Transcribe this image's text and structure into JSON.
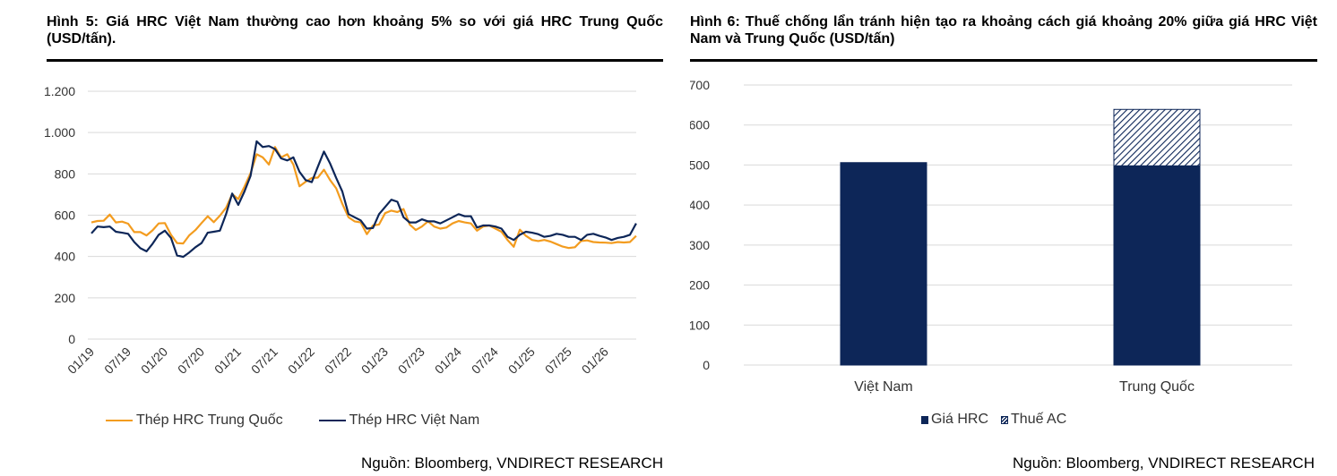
{
  "left": {
    "title": "Hình 5: Giá HRC Việt Nam thường cao hơn khoảng 5% so với giá HRC Trung Quốc (USD/tấn).",
    "source": "Nguồn: Bloomberg, VNDIRECT RESEARCH",
    "legend": [
      {
        "label": "Thép HRC Trung Quốc",
        "color": "#f39c1f"
      },
      {
        "label": "Thép HRC Việt Nam",
        "color": "#0d2658"
      }
    ]
  },
  "right": {
    "title": "Hình 6:  Thuế chống lẩn tránh hiện tạo ra khoảng cách giá khoảng 20% giữa giá HRC Việt Nam và Trung Quốc (USD/tấn)",
    "source": "Nguồn: Bloomberg, VNDIRECT RESEARCH",
    "legend": [
      {
        "label": "Giá HRC",
        "icon": "solid-square-icon",
        "color": "#0d2658"
      },
      {
        "label": "Thuế AC",
        "icon": "hatched-square-icon",
        "color": "#0d2658"
      }
    ]
  },
  "chart_data": [
    {
      "type": "line",
      "title": "",
      "ylim": [
        0,
        1200
      ],
      "yticks": [
        0,
        200,
        400,
        600,
        800,
        1000,
        1200
      ],
      "ytick_labels": [
        "0",
        "200",
        "400",
        "600",
        "800",
        "1.000",
        "1.200"
      ],
      "xtick_labels": [
        "01/19",
        "07/19",
        "01/20",
        "07/20",
        "01/21",
        "07/21",
        "01/22",
        "07/22",
        "01/23",
        "07/23",
        "01/24",
        "07/24",
        "01/25",
        "07/25",
        "01/26"
      ],
      "x_start": "2019-01",
      "grid": true,
      "legend_position": "bottom",
      "series": [
        {
          "name": "Thép HRC Trung Quốc",
          "color": "#f39c1f",
          "values": [
            565,
            572,
            573,
            603,
            565,
            569,
            559,
            518,
            518,
            502,
            527,
            560,
            562,
            505,
            465,
            463,
            503,
            528,
            562,
            595,
            566,
            598,
            636,
            702,
            678,
            738,
            803,
            895,
            880,
            845,
            930,
            880,
            895,
            845,
            740,
            762,
            780,
            782,
            820,
            770,
            730,
            655,
            590,
            570,
            565,
            508,
            550,
            555,
            610,
            622,
            615,
            630,
            555,
            528,
            545,
            570,
            545,
            535,
            540,
            560,
            572,
            565,
            560,
            525,
            545,
            550,
            535,
            520,
            480,
            447,
            530,
            500,
            480,
            475,
            480,
            472,
            460,
            448,
            441,
            445,
            475,
            478,
            470,
            468,
            467,
            465,
            470,
            468,
            470,
            500
          ]
        },
        {
          "name": "Thép HRC Việt Nam",
          "color": "#0d2658",
          "values": [
            512,
            545,
            542,
            545,
            520,
            515,
            510,
            470,
            440,
            425,
            462,
            505,
            525,
            490,
            405,
            398,
            420,
            445,
            465,
            515,
            520,
            525,
            605,
            705,
            650,
            715,
            790,
            958,
            930,
            935,
            920,
            875,
            865,
            880,
            810,
            770,
            760,
            835,
            908,
            850,
            780,
            715,
            605,
            590,
            575,
            535,
            538,
            605,
            640,
            675,
            665,
            590,
            565,
            565,
            580,
            570,
            570,
            560,
            575,
            590,
            605,
            595,
            595,
            540,
            550,
            550,
            545,
            535,
            495,
            480,
            505,
            520,
            515,
            508,
            495,
            500,
            510,
            505,
            495,
            495,
            480,
            505,
            510,
            500,
            492,
            480,
            490,
            495,
            505,
            560
          ]
        }
      ]
    },
    {
      "type": "bar",
      "stacked": true,
      "title": "",
      "categories": [
        "Việt Nam",
        "Trung Quốc"
      ],
      "ylim": [
        0,
        700
      ],
      "yticks": [
        0,
        100,
        200,
        300,
        400,
        500,
        600,
        700
      ],
      "grid": true,
      "legend_position": "bottom",
      "series": [
        {
          "name": "Giá HRC",
          "values": [
            506,
            498
          ],
          "fill": "solid",
          "color": "#0d2658"
        },
        {
          "name": "Thuế AC",
          "values": [
            0,
            141
          ],
          "fill": "hatched",
          "color": "#0d2658"
        }
      ]
    }
  ]
}
